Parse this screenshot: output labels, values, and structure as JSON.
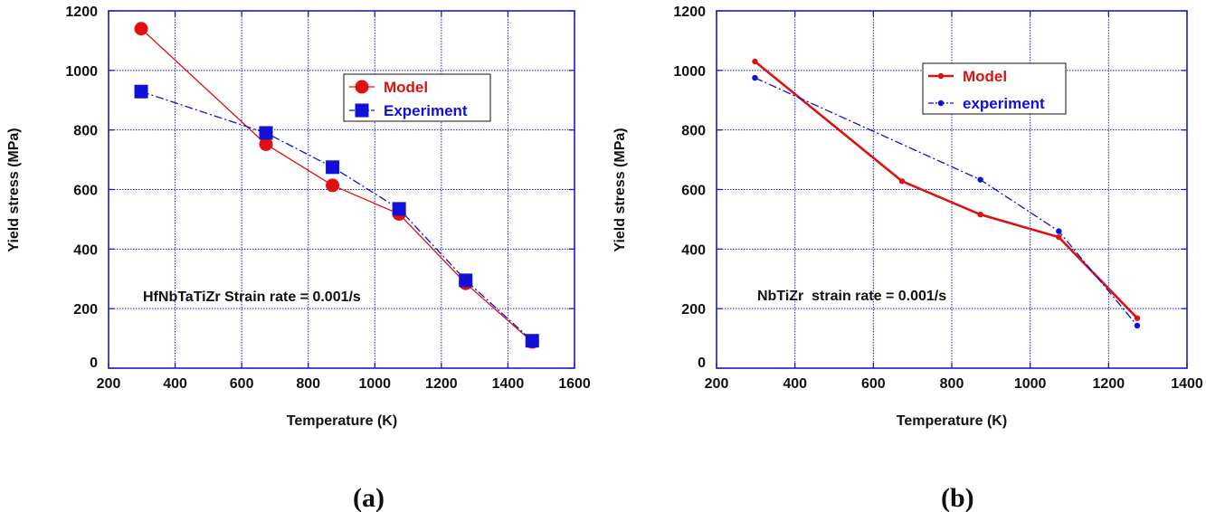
{
  "chart_data": [
    {
      "type": "line",
      "panel_label": "(a)",
      "xlabel": "Temperature (K)",
      "ylabel": "Yield stress (MPa)",
      "xlim": [
        200,
        1600
      ],
      "ylim": [
        0,
        1200
      ],
      "xticks": [
        200,
        400,
        600,
        800,
        1000,
        1200,
        1400,
        1600
      ],
      "yticks": [
        0,
        200,
        400,
        600,
        800,
        1000,
        1200
      ],
      "grid": true,
      "legend_position": "top-right",
      "annotation": "HfNbTaTiZr Strain rate = 0.001/s",
      "series": [
        {
          "name": "Model",
          "color": "#e01010",
          "marker": "circle",
          "marker_size": "large",
          "line_style": "solid",
          "points": [
            [
              298,
              1140
            ],
            [
              673,
              752
            ],
            [
              873,
              614
            ],
            [
              1073,
              518
            ],
            [
              1273,
              285
            ],
            [
              1473,
              88
            ]
          ]
        },
        {
          "name": "Experiment",
          "color": "#1010d8",
          "marker": "square",
          "marker_size": "large",
          "line_style": "dash-dot",
          "points": [
            [
              298,
              929
            ],
            [
              673,
              790
            ],
            [
              873,
              675
            ],
            [
              1073,
              535
            ],
            [
              1273,
              295
            ],
            [
              1473,
              92
            ]
          ]
        }
      ]
    },
    {
      "type": "line",
      "panel_label": "(b)",
      "xlabel": "Temperature (K)",
      "ylabel": "Yield stress (MPa)",
      "xlim": [
        200,
        1400
      ],
      "ylim": [
        0,
        1200
      ],
      "xticks": [
        200,
        400,
        600,
        800,
        1000,
        1200,
        1400
      ],
      "yticks": [
        0,
        200,
        400,
        600,
        800,
        1000,
        1200
      ],
      "grid": true,
      "legend_position": "top-right",
      "annotation": "NbTiZr  strain rate = 0.001/s",
      "series": [
        {
          "name": "Model",
          "color": "#e01010",
          "marker": "circle",
          "marker_size": "small",
          "line_style": "solid-thick",
          "points": [
            [
              298,
              1030
            ],
            [
              673,
              628
            ],
            [
              873,
              516
            ],
            [
              1073,
              440
            ],
            [
              1273,
              168
            ]
          ]
        },
        {
          "name": "experiment",
          "color": "#1010d8",
          "marker": "circle",
          "marker_size": "small",
          "line_style": "dash-dot",
          "points": [
            [
              298,
              975
            ],
            [
              873,
              633
            ],
            [
              1073,
              460
            ],
            [
              1273,
              143
            ]
          ]
        }
      ]
    }
  ]
}
